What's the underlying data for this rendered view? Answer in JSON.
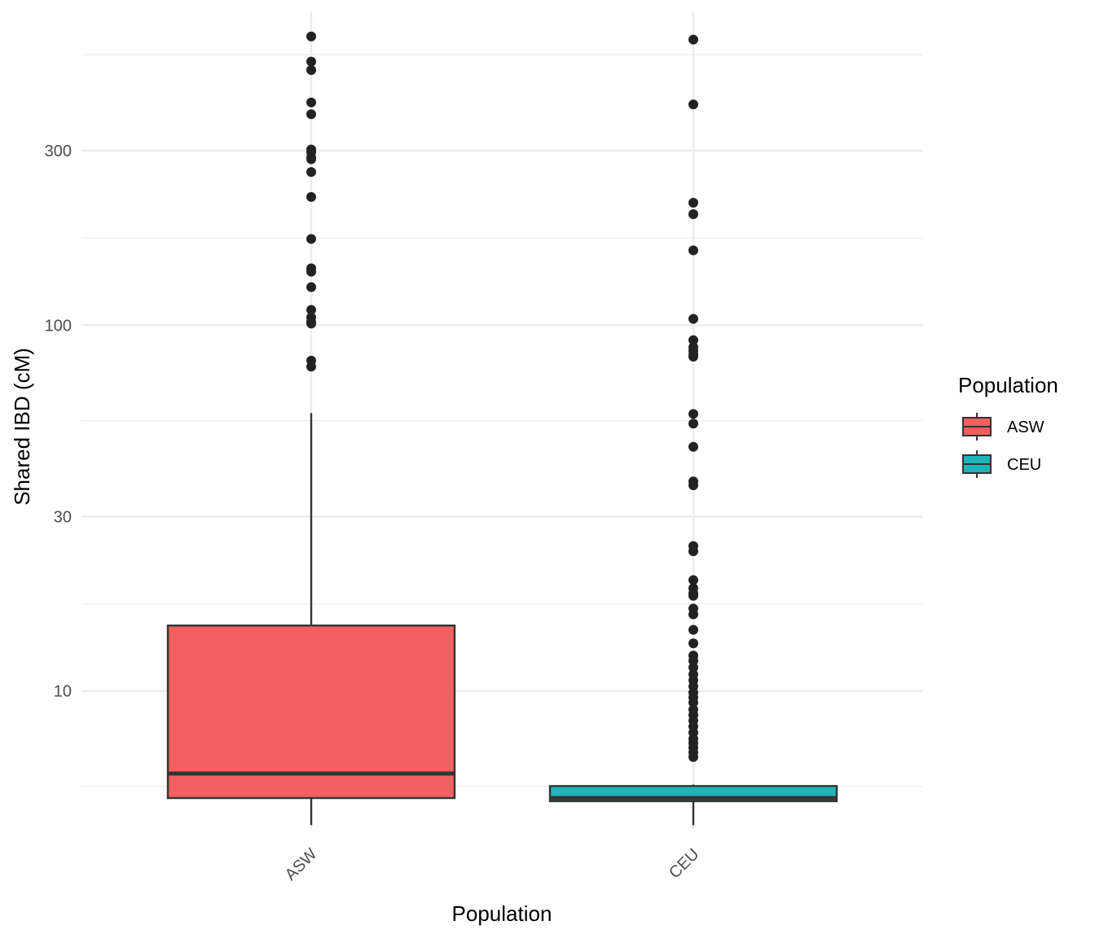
{
  "chart_data": {
    "type": "boxplot",
    "title": "",
    "xlabel": "Population",
    "ylabel": "Shared IBD (cM)",
    "y_scale": "log10",
    "ylim": [
      4.2,
      720
    ],
    "y_major_ticks": [
      10,
      30,
      100,
      300
    ],
    "y_minor_ticks": [
      5.48,
      17.3,
      54.8,
      173,
      548
    ],
    "categories": [
      "ASW",
      "CEU"
    ],
    "grid": true,
    "legend": {
      "title": "Population",
      "placement": "right",
      "entries": [
        "ASW",
        "CEU"
      ]
    },
    "series": [
      {
        "name": "ASW",
        "color": "#F46060",
        "lower_whisker": 4.3,
        "q1": 5.1,
        "median": 5.95,
        "q3": 15.1,
        "upper_whisker": 57.5,
        "outliers": [
          615,
          525,
          498,
          406,
          377,
          302,
          297,
          287,
          284,
          262,
          224,
          172,
          143,
          140,
          127,
          110,
          105,
          102,
          101,
          80,
          77
        ]
      },
      {
        "name": "CEU",
        "color": "#1FB5B8",
        "lower_whisker": 4.3,
        "q1": 5.0,
        "median": 5.1,
        "q3": 5.5,
        "upper_whisker": 5.55,
        "outliers": [
          603,
          401,
          216,
          201,
          160,
          104,
          91,
          87,
          85,
          83,
          82,
          57.2,
          53.8,
          46.5,
          37.4,
          36.5,
          24.9,
          24.1,
          20.1,
          19.1,
          18.5,
          18.2,
          16.8,
          16.2,
          14.7,
          13.5,
          12.5,
          12.1,
          11.6,
          11.1,
          10.7,
          10.3,
          9.9,
          9.6,
          9.3,
          8.9,
          8.6,
          8.3,
          8.0,
          7.7,
          7.4,
          7.2,
          7.0,
          6.8,
          6.6
        ]
      }
    ]
  }
}
